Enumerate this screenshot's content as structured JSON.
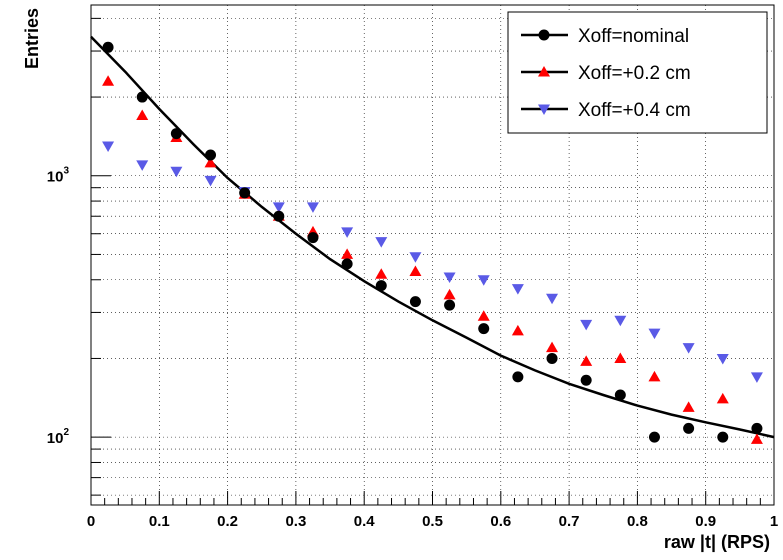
{
  "chart_data": {
    "type": "scatter",
    "xlabel": "raw |t| (RPS)",
    "ylabel": "Entries",
    "xlim": [
      0,
      1
    ],
    "ylim": [
      55,
      4500
    ],
    "yscale": "log",
    "grid": true,
    "legend_position": "top-right",
    "x_ticks": [
      {
        "value": 0,
        "label": "0"
      },
      {
        "value": 0.1,
        "label": "0.1"
      },
      {
        "value": 0.2,
        "label": "0.2"
      },
      {
        "value": 0.3,
        "label": "0.3"
      },
      {
        "value": 0.4,
        "label": "0.4"
      },
      {
        "value": 0.5,
        "label": "0.5"
      },
      {
        "value": 0.6,
        "label": "0.6"
      },
      {
        "value": 0.7,
        "label": "0.7"
      },
      {
        "value": 0.8,
        "label": "0.8"
      },
      {
        "value": 0.9,
        "label": "0.9"
      },
      {
        "value": 1,
        "label": "1"
      }
    ],
    "y_ticks": [
      {
        "value": 100,
        "base": "10",
        "exp": "2"
      },
      {
        "value": 1000,
        "base": "10",
        "exp": "3"
      }
    ],
    "x": [
      0.025,
      0.075,
      0.125,
      0.175,
      0.225,
      0.275,
      0.325,
      0.375,
      0.425,
      0.475,
      0.525,
      0.575,
      0.625,
      0.675,
      0.725,
      0.775,
      0.825,
      0.875,
      0.925,
      0.975
    ],
    "series": [
      {
        "name": "Xoff=nominal",
        "marker": "circle",
        "color": "#000000",
        "values": [
          3100,
          2000,
          1450,
          1200,
          860,
          700,
          580,
          460,
          380,
          330,
          320,
          260,
          170,
          200,
          165,
          145,
          100,
          108,
          100,
          108
        ]
      },
      {
        "name": "Xoff=+0.2 cm",
        "marker": "triangle-up",
        "color": "#ff0000",
        "values": [
          2300,
          1700,
          1400,
          1120,
          850,
          700,
          610,
          500,
          420,
          430,
          350,
          290,
          255,
          220,
          195,
          200,
          170,
          130,
          140,
          98
        ]
      },
      {
        "name": "Xoff=+0.4 cm",
        "marker": "triangle-down",
        "color": "#5a5ae6",
        "values": [
          1300,
          1100,
          1040,
          960,
          870,
          760,
          760,
          610,
          560,
          490,
          410,
          400,
          370,
          340,
          270,
          280,
          250,
          220,
          200,
          170
        ]
      }
    ],
    "fit_curve": {
      "series": "Xoff=nominal",
      "color": "#000000",
      "x": [
        0.0,
        0.05,
        0.1,
        0.15,
        0.2,
        0.25,
        0.3,
        0.35,
        0.4,
        0.45,
        0.5,
        0.55,
        0.6,
        0.65,
        0.7,
        0.75,
        0.8,
        0.85,
        0.9,
        0.95,
        1.0
      ],
      "y": [
        3400,
        2500,
        1800,
        1320,
        980,
        760,
        600,
        480,
        395,
        330,
        280,
        240,
        205,
        180,
        160,
        145,
        132,
        122,
        114,
        107,
        100
      ]
    }
  }
}
